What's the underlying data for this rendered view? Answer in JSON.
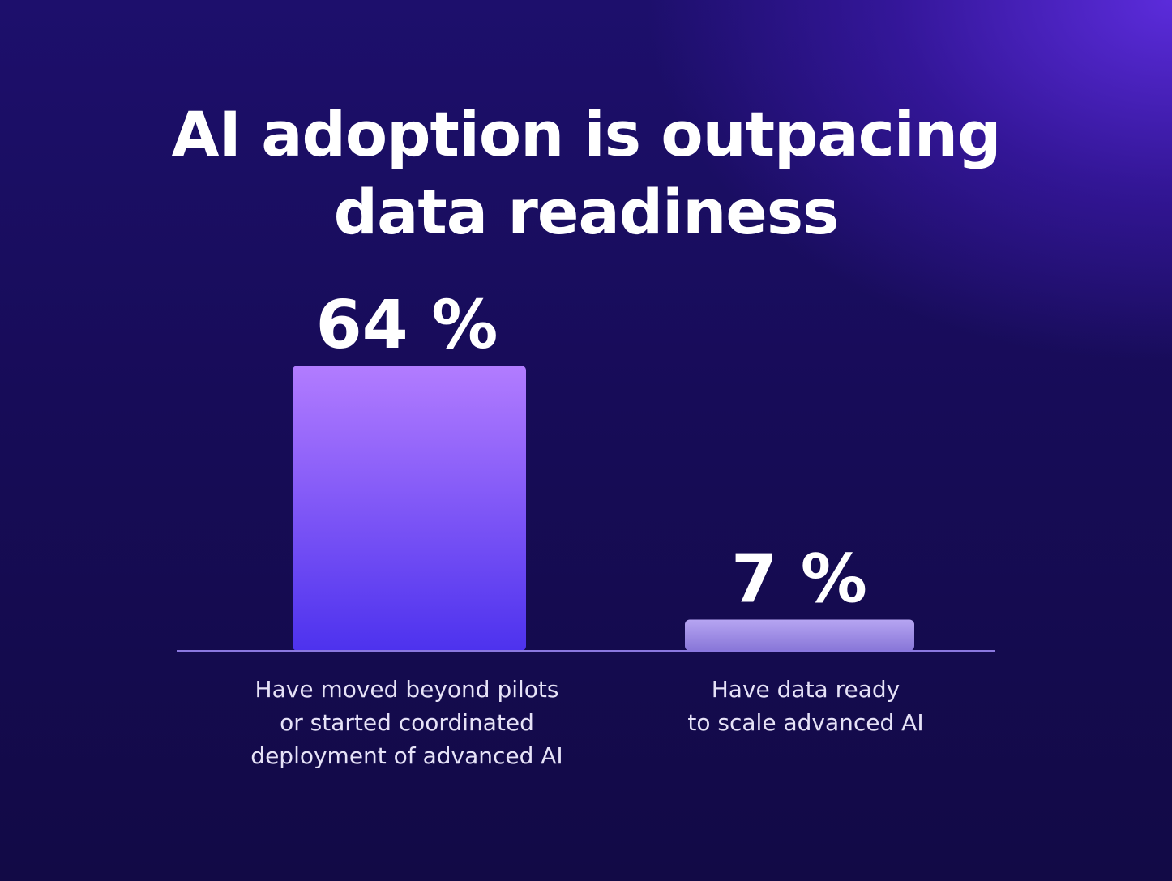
{
  "title": {
    "line1": "AI adoption is outpacing",
    "line2": "data readiness"
  },
  "chart_data": {
    "type": "bar",
    "title": "AI adoption is outpacing data readiness",
    "categories": [
      [
        "Have moved beyond pilots",
        "or started coordinated",
        "deployment of advanced AI"
      ],
      [
        "Have data ready",
        "to scale advanced AI"
      ]
    ],
    "values": [
      64,
      7
    ],
    "value_labels": [
      "64 %",
      "7 %"
    ],
    "unit": "%",
    "ylim": [
      0,
      64
    ],
    "grid": false,
    "legend": "none",
    "colors": {
      "bar1_top": "#b27cff",
      "bar1_bottom": "#4d32ee",
      "bar2_top": "#b6a5f2",
      "bar2_bottom": "#8876d8",
      "baseline": "#8b78e0",
      "text": "#ffffff",
      "label_text": "#e6e2f7"
    }
  }
}
